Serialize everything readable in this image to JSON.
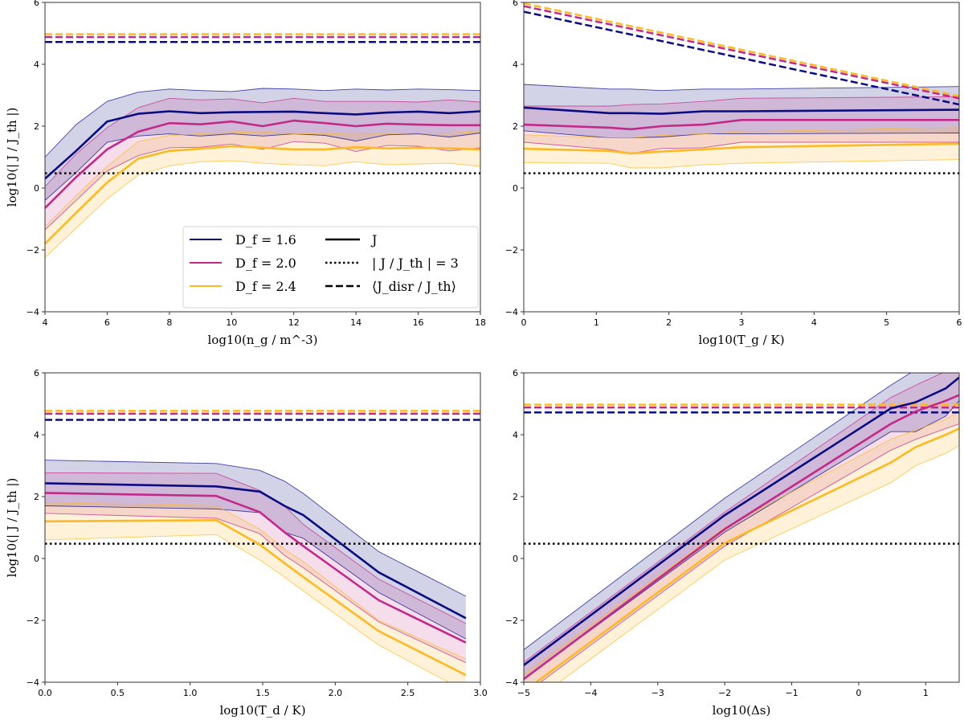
{
  "figure": {
    "colors": {
      "Df1.6": "#0b0c80",
      "Df2.0": "#c22a8a",
      "Df2.4": "#fdb925",
      "threshold": "#000000"
    },
    "legend": {
      "location": "lower-right of top-left panel",
      "series_labels": [
        "D_f = 1.6",
        "D_f = 2.0",
        "D_f = 2.4"
      ],
      "style_labels": [
        "J",
        "| J / J_th | = 3",
        "⟨J_disr / J_th⟩"
      ]
    }
  },
  "chart_data": [
    {
      "type": "line",
      "panel": "top-left",
      "xlabel": "log10(n_g / m^-3)",
      "ylabel": "log10(| J / J_th |)",
      "xlim": [
        4,
        18
      ],
      "ylim": [
        -4,
        6
      ],
      "xticks": [
        4,
        6,
        8,
        10,
        12,
        14,
        16,
        18
      ],
      "yticks": [
        -4,
        -2,
        0,
        2,
        4,
        6
      ],
      "x": [
        4,
        5,
        6,
        7,
        8,
        9,
        10,
        11,
        12,
        13,
        14,
        15,
        16,
        17,
        18
      ],
      "threshold": 0.477,
      "series": [
        {
          "name": "D_f = 1.6",
          "J": [
            0.3,
            1.2,
            2.15,
            2.4,
            2.48,
            2.42,
            2.45,
            2.46,
            2.47,
            2.42,
            2.38,
            2.44,
            2.47,
            2.42,
            2.48
          ],
          "upper": [
            1.0,
            2.05,
            2.8,
            3.1,
            3.2,
            3.15,
            3.12,
            3.22,
            3.2,
            3.15,
            3.2,
            3.17,
            3.2,
            3.18,
            3.15
          ],
          "lower": [
            -0.4,
            0.5,
            1.48,
            1.68,
            1.75,
            1.68,
            1.75,
            1.68,
            1.75,
            1.7,
            1.52,
            1.72,
            1.75,
            1.65,
            1.78
          ],
          "disr": [
            4.72,
            4.72
          ]
        },
        {
          "name": "D_f = 2.0",
          "J": [
            -0.65,
            0.35,
            1.25,
            1.82,
            2.1,
            2.06,
            2.15,
            2.0,
            2.18,
            2.1,
            2.0,
            2.08,
            2.05,
            2.03,
            2.03
          ],
          "upper": [
            0.05,
            1.1,
            1.95,
            2.6,
            2.9,
            2.85,
            2.88,
            2.75,
            2.9,
            2.8,
            2.8,
            2.8,
            2.78,
            2.85,
            2.78
          ],
          "lower": [
            -1.35,
            -0.4,
            0.55,
            1.05,
            1.3,
            1.32,
            1.42,
            1.25,
            1.5,
            1.45,
            1.18,
            1.38,
            1.35,
            1.2,
            1.3
          ],
          "disr": [
            4.88,
            4.88
          ]
        },
        {
          "name": "D_f = 2.4",
          "J": [
            -1.8,
            -0.8,
            0.18,
            0.95,
            1.2,
            1.27,
            1.35,
            1.3,
            1.25,
            1.25,
            1.32,
            1.28,
            1.3,
            1.28,
            1.25
          ],
          "upper": [
            -1.25,
            -0.25,
            0.7,
            1.5,
            1.7,
            1.75,
            1.8,
            1.82,
            1.75,
            1.75,
            1.78,
            1.76,
            1.78,
            1.78,
            1.82
          ],
          "lower": [
            -2.25,
            -1.3,
            -0.35,
            0.42,
            0.72,
            0.85,
            0.88,
            0.8,
            0.75,
            0.72,
            0.85,
            0.75,
            0.78,
            0.8,
            0.7
          ],
          "disr": [
            4.97,
            4.97
          ]
        }
      ]
    },
    {
      "type": "line",
      "panel": "top-right",
      "xlabel": "log10(T_g / K)",
      "ylabel": "",
      "xlim": [
        0,
        6
      ],
      "ylim": [
        -4,
        6
      ],
      "xticks": [
        0,
        1,
        2,
        3,
        4,
        5,
        6
      ],
      "yticks": [
        -4,
        -2,
        0,
        2,
        4,
        6
      ],
      "x": [
        0,
        1.18,
        1.48,
        1.9,
        2.48,
        3.0,
        6.0
      ],
      "threshold": 0.477,
      "series": [
        {
          "name": "D_f = 1.6",
          "J": [
            2.6,
            2.42,
            2.42,
            2.4,
            2.48,
            2.48,
            2.53
          ],
          "upper": [
            3.35,
            3.2,
            3.2,
            3.15,
            3.2,
            3.2,
            3.28
          ],
          "lower": [
            1.85,
            1.62,
            1.62,
            1.65,
            1.75,
            1.75,
            1.78
          ],
          "disr": [
            5.7,
            2.7
          ]
        },
        {
          "name": "D_f = 2.0",
          "J": [
            2.05,
            1.95,
            1.9,
            2.0,
            2.05,
            2.2,
            2.2
          ],
          "upper": [
            2.65,
            2.65,
            2.7,
            2.72,
            2.8,
            2.9,
            2.95
          ],
          "lower": [
            1.48,
            1.25,
            1.12,
            1.28,
            1.3,
            1.48,
            1.48
          ],
          "disr": [
            5.88,
            2.9
          ]
        },
        {
          "name": "D_f = 2.4",
          "J": [
            1.27,
            1.2,
            1.12,
            1.18,
            1.25,
            1.32,
            1.43
          ],
          "upper": [
            1.72,
            1.62,
            1.62,
            1.7,
            1.75,
            1.82,
            1.95
          ],
          "lower": [
            0.82,
            0.8,
            0.65,
            0.65,
            0.75,
            0.8,
            0.92
          ],
          "disr": [
            5.97,
            2.97
          ]
        }
      ]
    },
    {
      "type": "line",
      "panel": "bottom-left",
      "xlabel": "log10(T_d / K)",
      "ylabel": "log10(| J / J_th |)",
      "xlim": [
        0,
        3
      ],
      "ylim": [
        -4,
        6
      ],
      "xticks": [
        0.0,
        0.5,
        1.0,
        1.5,
        2.0,
        2.5,
        3.0
      ],
      "yticks": [
        -4,
        -2,
        0,
        2,
        4,
        6
      ],
      "x": [
        0,
        1.18,
        1.48,
        1.65,
        1.78,
        2.3,
        2.9
      ],
      "threshold": 0.477,
      "series": [
        {
          "name": "D_f = 1.6",
          "J": [
            2.43,
            2.33,
            2.16,
            1.7,
            1.4,
            -0.45,
            -1.93
          ],
          "upper": [
            3.18,
            3.07,
            2.85,
            2.5,
            2.1,
            0.22,
            -1.22
          ],
          "lower": [
            1.7,
            1.6,
            1.48,
            0.85,
            0.65,
            -1.1,
            -2.6
          ],
          "disr": [
            4.48,
            4.48
          ]
        },
        {
          "name": "D_f = 2.0",
          "J": [
            2.12,
            2.02,
            1.5,
            0.85,
            0.4,
            -1.35,
            -2.72
          ],
          "upper": [
            2.77,
            2.75,
            2.2,
            1.7,
            1.1,
            -0.67,
            -2.1
          ],
          "lower": [
            1.46,
            1.3,
            0.8,
            0.1,
            -0.3,
            -2.05,
            -3.37
          ],
          "disr": [
            4.68,
            4.68
          ]
        },
        {
          "name": "D_f = 2.4",
          "J": [
            1.2,
            1.24,
            0.45,
            -0.15,
            -0.6,
            -2.35,
            -3.77
          ],
          "upper": [
            1.8,
            1.7,
            0.95,
            0.3,
            -0.1,
            -2.0,
            -3.25
          ],
          "lower": [
            0.6,
            0.77,
            -0.05,
            -0.6,
            -1.05,
            -2.8,
            -4.3
          ],
          "disr": [
            4.77,
            4.77
          ]
        }
      ]
    },
    {
      "type": "line",
      "panel": "bottom-right",
      "xlabel": "log10(Δs)",
      "ylabel": "",
      "xlim": [
        -5,
        1.5
      ],
      "ylim": [
        -4,
        6
      ],
      "xticks": [
        -5,
        -4,
        -3,
        -2,
        -1,
        0,
        1
      ],
      "yticks": [
        -4,
        -2,
        0,
        2,
        4,
        6
      ],
      "x": [
        -5,
        -2,
        0.48,
        0.85,
        1.3,
        1.5
      ],
      "threshold": 0.477,
      "series": [
        {
          "name": "D_f = 1.6",
          "J": [
            -3.45,
            1.4,
            4.85,
            5.05,
            5.5,
            5.85
          ],
          "upper": [
            -2.95,
            1.95,
            5.6,
            6.1,
            6.4,
            6.6
          ],
          "lower": [
            -3.9,
            0.85,
            4.1,
            4.1,
            4.6,
            5.1
          ],
          "disr": [
            4.72,
            4.72
          ]
        },
        {
          "name": "D_f = 2.0",
          "J": [
            -3.9,
            0.95,
            4.35,
            4.75,
            5.1,
            5.28
          ],
          "upper": [
            -3.35,
            1.5,
            5.2,
            5.6,
            6.05,
            6.2
          ],
          "lower": [
            -4.4,
            0.4,
            3.5,
            3.85,
            4.2,
            4.35
          ],
          "disr": [
            4.88,
            4.88
          ]
        },
        {
          "name": "D_f = 2.4",
          "J": [
            -4.3,
            0.5,
            3.1,
            3.6,
            4.0,
            4.2
          ],
          "upper": [
            -3.75,
            1.0,
            3.85,
            4.15,
            4.5,
            4.75
          ],
          "lower": [
            -4.85,
            -0.05,
            2.45,
            3.0,
            3.4,
            3.65
          ],
          "disr": [
            4.97,
            4.97
          ]
        }
      ]
    }
  ]
}
